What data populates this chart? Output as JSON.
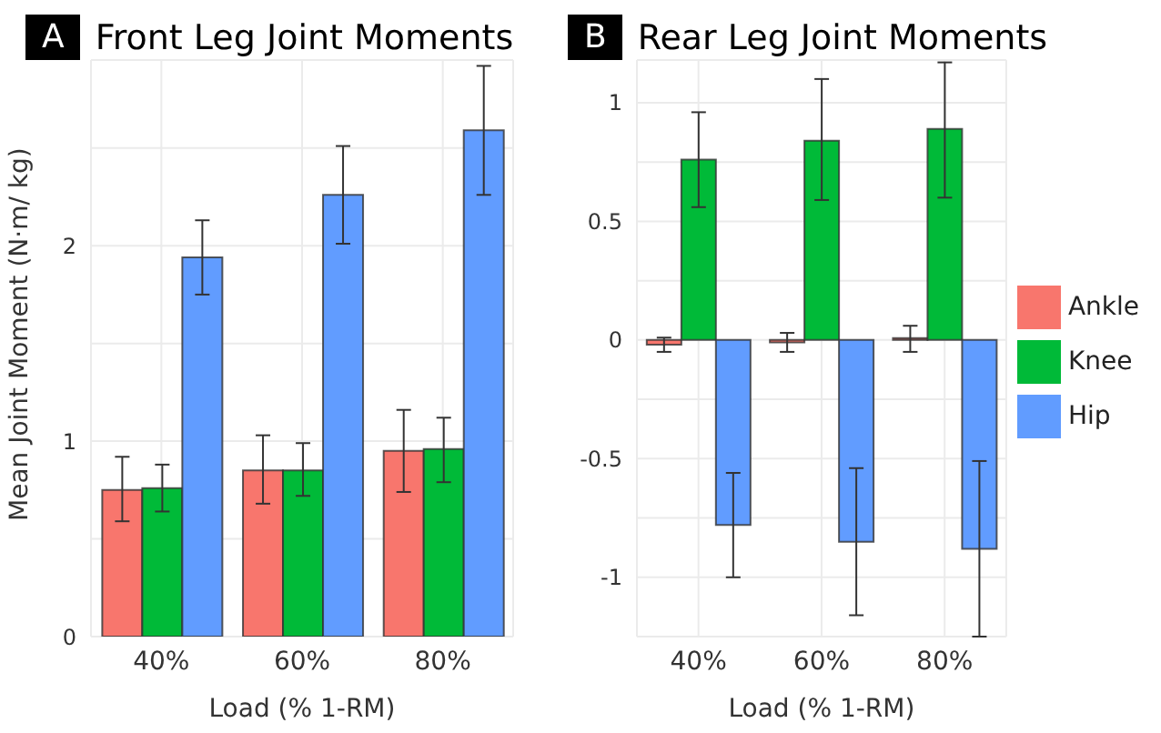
{
  "chart_data": [
    {
      "type": "bar",
      "title": "Front Leg Joint Moments",
      "annotations": [
        "A"
      ],
      "xlabel": "Load (% 1-RM)",
      "ylabel": "Mean Joint Moment (N·m/ kg)",
      "categories": [
        "40%",
        "60%",
        "80%"
      ],
      "series": [
        {
          "color": "#f8766d",
          "values": [
            0.75,
            0.85,
            0.95
          ],
          "errors": [
            [
              0.59,
              0.92
            ],
            [
              0.68,
              1.03
            ],
            [
              0.74,
              1.16
            ]
          ]
        },
        {
          "color": "#00ba38",
          "values": [
            0.76,
            0.85,
            0.96
          ],
          "errors": [
            [
              0.64,
              0.88
            ],
            [
              0.72,
              0.99
            ],
            [
              0.79,
              1.12
            ]
          ]
        },
        {
          "color": "#619cff",
          "values": [
            1.94,
            2.26,
            2.59
          ],
          "errors": [
            [
              1.75,
              2.13
            ],
            [
              2.01,
              2.51
            ],
            [
              2.26,
              2.92
            ]
          ]
        }
      ],
      "ylim": [
        0,
        2.95
      ],
      "yticks": [
        0,
        {
          "value": 0.5,
          "label": null
        },
        1,
        {
          "value": 1.5,
          "label": null
        },
        2,
        {
          "value": 2.5,
          "label": null
        }
      ],
      "grid": true,
      "legend": false
    },
    {
      "type": "bar",
      "title": "Rear Leg Joint Moments",
      "annotations": [
        "B"
      ],
      "xlabel": "Load (% 1-RM)",
      "categories": [
        "40%",
        "60%",
        "80%"
      ],
      "series": [
        {
          "name": "Ankle",
          "color": "#f8766d",
          "values": [
            -0.02,
            -0.01,
            0.0
          ],
          "errors": [
            [
              -0.05,
              0.01
            ],
            [
              -0.05,
              0.03
            ],
            [
              -0.05,
              0.06
            ]
          ]
        },
        {
          "name": "Knee",
          "color": "#00ba38",
          "values": [
            0.76,
            0.84,
            0.89
          ],
          "errors": [
            [
              0.56,
              0.96
            ],
            [
              0.59,
              1.1
            ],
            [
              0.6,
              1.17
            ]
          ]
        },
        {
          "name": "Hip",
          "color": "#619cff",
          "values": [
            -0.78,
            -0.85,
            -0.88
          ],
          "errors": [
            [
              -1.0,
              -0.56
            ],
            [
              -1.16,
              -0.54
            ],
            [
              -1.25,
              -0.51
            ]
          ]
        }
      ],
      "ylim": [
        -1.25,
        1.18
      ],
      "yticks": [
        {
          "value": -1.25,
          "label": null
        },
        -1,
        {
          "value": -0.75,
          "label": null
        },
        -0.5,
        {
          "value": -0.25,
          "label": null
        },
        0,
        {
          "value": 0.25,
          "label": null
        },
        0.5,
        {
          "value": 0.75,
          "label": null
        },
        1
      ],
      "grid": true,
      "legend": "right"
    }
  ]
}
